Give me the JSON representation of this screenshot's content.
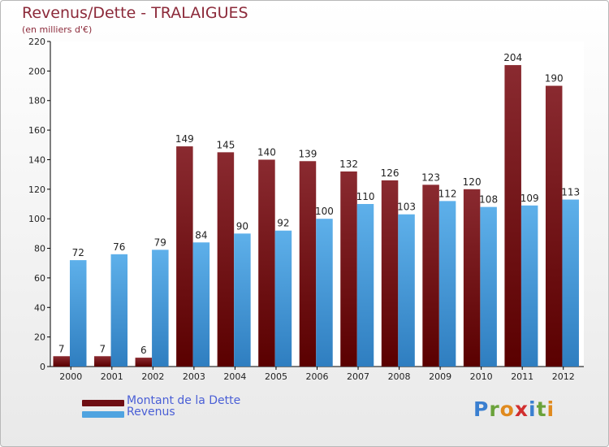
{
  "header": {
    "title": "Revenus/Dette - TRALAIGUES",
    "subtitle": "(en milliers d'€)"
  },
  "legend": {
    "items": [
      {
        "label": "Montant de la Dette",
        "color": "#6e0d12"
      },
      {
        "label": "Revenus",
        "color": "#4fa3e0"
      }
    ]
  },
  "logo": {
    "text": "Proxiti"
  },
  "chart_data": {
    "type": "bar",
    "categories": [
      "2000",
      "2001",
      "2002",
      "2003",
      "2004",
      "2005",
      "2006",
      "2007",
      "2008",
      "2009",
      "2010",
      "2011",
      "2012"
    ],
    "series": [
      {
        "name": "Montant de la Dette",
        "color": "#6e0d12",
        "values": [
          7,
          7,
          6,
          149,
          145,
          140,
          139,
          132,
          126,
          123,
          120,
          204,
          190
        ]
      },
      {
        "name": "Revenus",
        "color": "#4fa3e0",
        "values": [
          72,
          76,
          79,
          84,
          90,
          92,
          100,
          110,
          103,
          112,
          108,
          109,
          113
        ]
      }
    ],
    "ylim": [
      0,
      220
    ],
    "yticks": [
      0,
      20,
      40,
      60,
      80,
      100,
      120,
      140,
      160,
      180,
      200,
      220
    ],
    "grid": false,
    "legend_position": "bottom-left"
  }
}
